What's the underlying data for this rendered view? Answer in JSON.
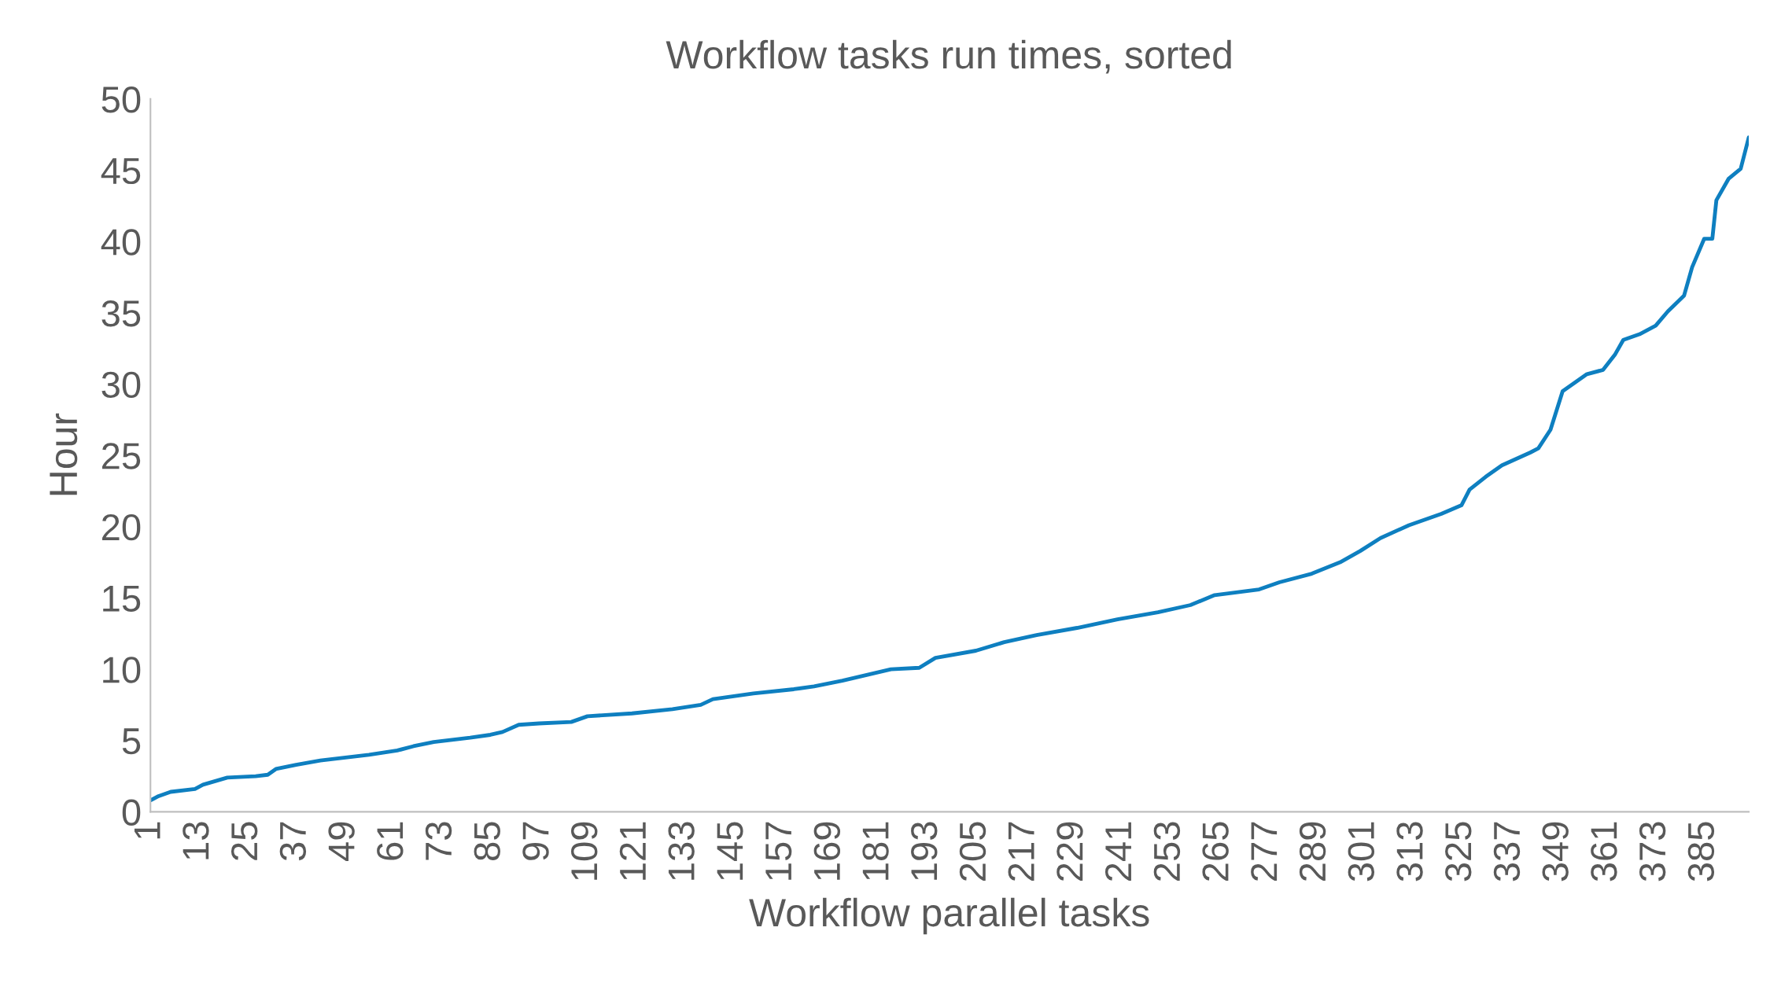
{
  "chart_data": {
    "type": "line",
    "title": "Workflow tasks run times, sorted",
    "xlabel": "Workflow parallel tasks",
    "ylabel": "Hour",
    "x": [
      1,
      3,
      6,
      12,
      14,
      20,
      27,
      30,
      32,
      37,
      43,
      55,
      62,
      66,
      71,
      80,
      85,
      88,
      92,
      97,
      105,
      109,
      120,
      130,
      137,
      140,
      150,
      160,
      165,
      172,
      178,
      184,
      191,
      195,
      205,
      212,
      220,
      230,
      240,
      250,
      258,
      264,
      275,
      280,
      288,
      295,
      300,
      305,
      312,
      320,
      325,
      327,
      331,
      335,
      342,
      344,
      347,
      350,
      352,
      356,
      360,
      363,
      365,
      369,
      373,
      376,
      380,
      382,
      385,
      387,
      388,
      391,
      394,
      396
    ],
    "series": [
      {
        "color": "#0e7fc0",
        "values": [
          0.8,
          1.1,
          1.4,
          1.6,
          1.9,
          2.4,
          2.5,
          2.6,
          3.0,
          3.3,
          3.6,
          4.0,
          4.3,
          4.6,
          4.9,
          5.2,
          5.4,
          5.6,
          6.1,
          6.2,
          6.3,
          6.7,
          6.9,
          7.2,
          7.5,
          7.9,
          8.3,
          8.6,
          8.8,
          9.2,
          9.6,
          10.0,
          10.1,
          10.8,
          11.3,
          11.9,
          12.4,
          12.9,
          13.5,
          14.0,
          14.5,
          15.2,
          15.6,
          16.1,
          16.7,
          17.5,
          18.3,
          19.2,
          20.1,
          20.9,
          21.5,
          22.6,
          23.5,
          24.3,
          25.2,
          25.5,
          26.8,
          29.5,
          29.9,
          30.7,
          31.0,
          32.1,
          33.1,
          33.5,
          34.1,
          35.1,
          36.2,
          38.2,
          40.2,
          40.2,
          42.9,
          44.4,
          45.1,
          47.3
        ]
      }
    ],
    "xlim": [
      1,
      396
    ],
    "xticks": [
      1,
      13,
      25,
      37,
      49,
      61,
      73,
      85,
      97,
      109,
      121,
      133,
      145,
      157,
      169,
      181,
      193,
      205,
      217,
      229,
      241,
      253,
      265,
      277,
      289,
      301,
      313,
      325,
      337,
      349,
      361,
      373,
      385
    ],
    "ylim": [
      0,
      50
    ],
    "yticks": [
      0,
      5,
      10,
      15,
      20,
      25,
      30,
      35,
      40,
      45,
      50
    ],
    "grid": false,
    "marker": "none",
    "line_style": "solid"
  }
}
